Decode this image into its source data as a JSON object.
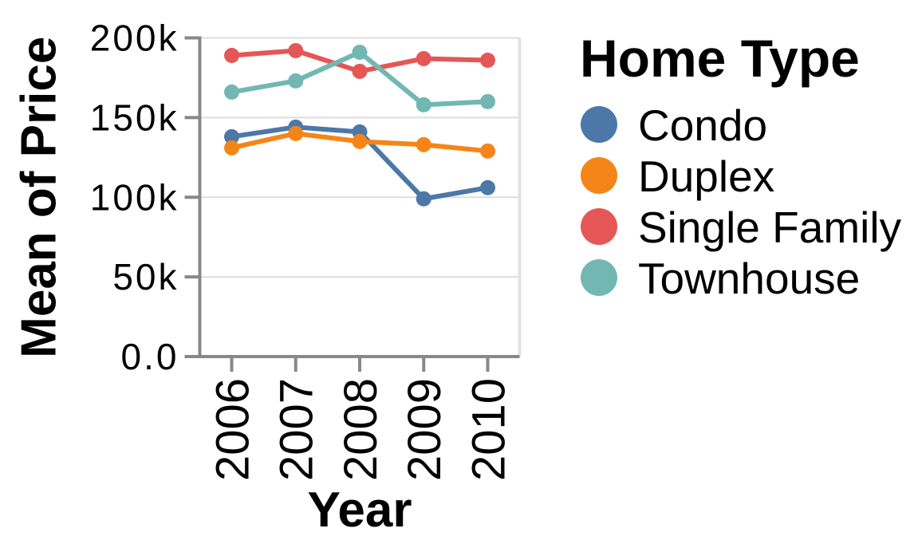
{
  "chart_data": {
    "type": "line",
    "title": "",
    "xlabel": "Year",
    "ylabel": "Mean of Price",
    "x_categories": [
      "2006",
      "2007",
      "2008",
      "2009",
      "2010"
    ],
    "y_tick_values": [
      0,
      50000,
      100000,
      150000,
      200000
    ],
    "y_tick_labels": [
      "0.0",
      "50k",
      "100k",
      "150k",
      "200k"
    ],
    "ylim": [
      0,
      200000
    ],
    "grid": true,
    "legend_position": "right",
    "legend_title": "Home Type",
    "series": [
      {
        "name": "Condo",
        "color": "#4c78a8",
        "values": [
          138000,
          144000,
          141000,
          99000,
          106000
        ]
      },
      {
        "name": "Duplex",
        "color": "#f58518",
        "values": [
          131000,
          140000,
          135000,
          133000,
          129000
        ]
      },
      {
        "name": "Single Family",
        "color": "#e45756",
        "values": [
          189000,
          192000,
          179000,
          187000,
          186000
        ]
      },
      {
        "name": "Townhouse",
        "color": "#72b7b2",
        "values": [
          166000,
          173000,
          191000,
          158000,
          160000
        ]
      }
    ]
  },
  "colors": {
    "background": "#ffffff",
    "axis_domain": "#888888",
    "gridline": "#dddddd",
    "plot_right_border": "#e2e2e2",
    "text": "#000000"
  }
}
